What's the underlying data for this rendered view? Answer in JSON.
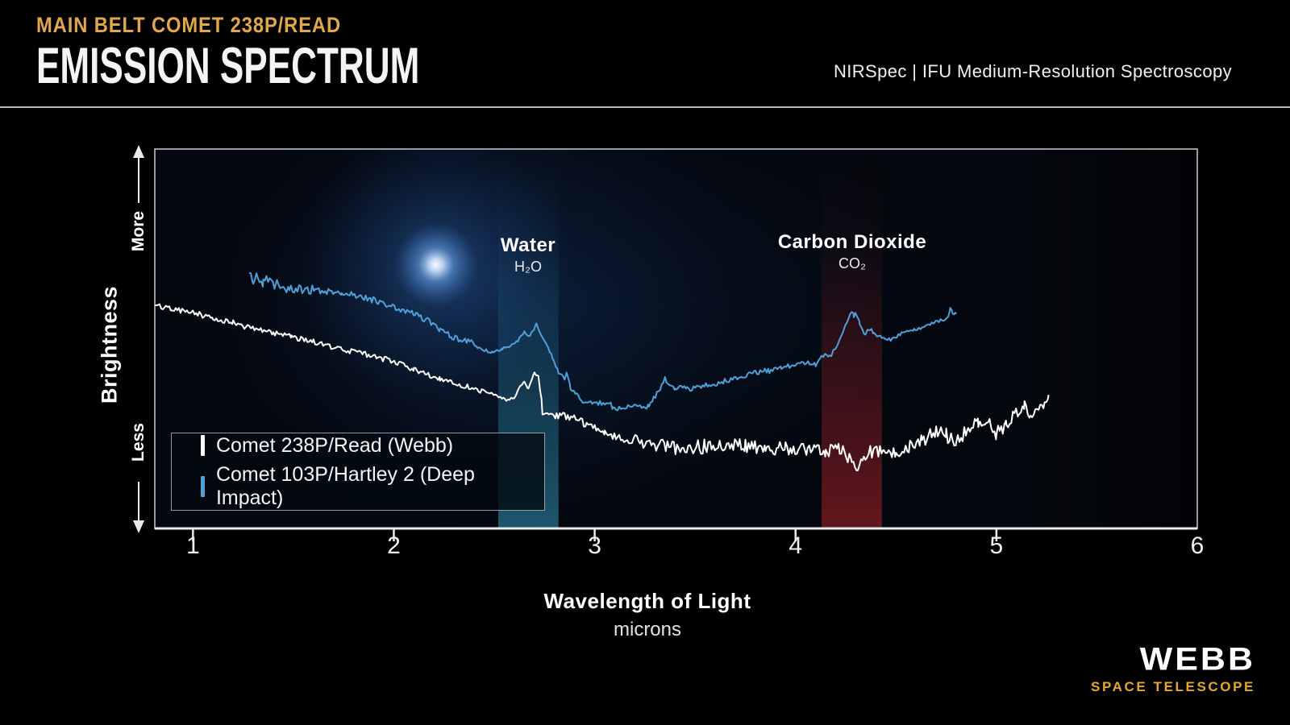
{
  "header": {
    "kicker": "MAIN BELT COMET 238P/READ",
    "title": "EMISSION SPECTRUM",
    "instrument": "NIRSpec | IFU Medium-Resolution Spectroscopy"
  },
  "logo": {
    "name": "WEBB",
    "subtitle": "SPACE TELESCOPE"
  },
  "colors": {
    "gold": "#e2a64b",
    "divider": "#b5bbc0",
    "axis": "#e8ecef",
    "frame": "#c9ced4",
    "white_series": "#ffffff",
    "blue_series": "#4f9fd9",
    "water_band": "#2d8cab",
    "co2_band": "#a02028",
    "background": "#000000"
  },
  "chart_data": {
    "type": "line",
    "title": "Emission Spectrum of Main Belt Comet 238P/Read",
    "xlabel": "Wavelength of Light",
    "x_units": "microns",
    "ylabel": "Brightness",
    "y_axis_annotations": {
      "top": "More",
      "bottom": "Less"
    },
    "x_ticks": [
      1,
      2,
      3,
      4,
      5,
      6
    ],
    "xlim": [
      0.81,
      6.0
    ],
    "ylim_relative": [
      0,
      100
    ],
    "grid": false,
    "legend_position": "lower-left",
    "bands": [
      {
        "label": "Water",
        "formula": "H₂O",
        "x_range": [
          2.52,
          2.82
        ],
        "color": "#2d8cab"
      },
      {
        "label": "Carbon Dioxide",
        "formula": "CO₂",
        "x_range": [
          4.13,
          4.43
        ],
        "color": "#a02028"
      }
    ],
    "annotations": [
      {
        "type": "comet-glow",
        "x": 2.21,
        "y": 69.5
      }
    ],
    "series": [
      {
        "name": "Comet 238P/Read (Webb)",
        "color": "#ffffff",
        "points": [
          [
            0.81,
            58.8
          ],
          [
            0.93,
            57.5
          ],
          [
            1.0,
            56.9
          ],
          [
            1.1,
            55.4
          ],
          [
            1.2,
            54.2
          ],
          [
            1.29,
            52.7
          ],
          [
            1.4,
            51.5
          ],
          [
            1.49,
            50.5
          ],
          [
            1.6,
            49.2
          ],
          [
            1.74,
            47.3
          ],
          [
            1.85,
            46.0
          ],
          [
            1.97,
            44.4
          ],
          [
            2.1,
            42.0
          ],
          [
            2.23,
            39.5
          ],
          [
            2.35,
            37.6
          ],
          [
            2.49,
            35.5
          ],
          [
            2.56,
            33.8
          ],
          [
            2.6,
            34.6
          ],
          [
            2.63,
            37.4
          ],
          [
            2.65,
            38.9
          ],
          [
            2.67,
            36.7
          ],
          [
            2.7,
            41.0
          ],
          [
            2.72,
            39.9
          ],
          [
            2.735,
            34.0
          ],
          [
            2.74,
            30.1
          ],
          [
            2.78,
            30.3
          ],
          [
            2.81,
            29.9
          ],
          [
            2.89,
            29.3
          ],
          [
            2.96,
            27.4
          ],
          [
            3.05,
            25.1
          ],
          [
            3.13,
            23.8
          ],
          [
            3.21,
            22.7
          ],
          [
            3.33,
            21.6
          ],
          [
            3.45,
            21.2
          ],
          [
            3.55,
            21.6
          ],
          [
            3.65,
            21.9
          ],
          [
            3.75,
            21.6
          ],
          [
            3.85,
            21.4
          ],
          [
            3.95,
            21.2
          ],
          [
            4.06,
            21.0
          ],
          [
            4.15,
            20.7
          ],
          [
            4.22,
            20.4
          ],
          [
            4.28,
            18.5
          ],
          [
            4.31,
            15.5
          ],
          [
            4.34,
            18.5
          ],
          [
            4.38,
            20.4
          ],
          [
            4.44,
            20.3
          ],
          [
            4.5,
            20.2
          ],
          [
            4.57,
            21.5
          ],
          [
            4.63,
            22.9
          ],
          [
            4.7,
            26.1
          ],
          [
            4.75,
            24.5
          ],
          [
            4.8,
            22.3
          ],
          [
            4.86,
            26.5
          ],
          [
            4.91,
            27.6
          ],
          [
            4.95,
            28.7
          ],
          [
            5.0,
            24.8
          ],
          [
            5.05,
            27.5
          ],
          [
            5.09,
            29.7
          ],
          [
            5.14,
            32.7
          ],
          [
            5.17,
            29.7
          ],
          [
            5.21,
            31.5
          ],
          [
            5.24,
            32.7
          ],
          [
            5.26,
            35.2
          ]
        ],
        "noise_segments": [
          [
            0.81,
            2.45,
            0.7
          ],
          [
            2.45,
            2.8,
            0.3
          ],
          [
            2.8,
            3.2,
            1.0
          ],
          [
            3.2,
            5.1,
            1.9
          ],
          [
            5.1,
            5.26,
            1.2
          ]
        ]
      },
      {
        "name": "Comet 103P/Hartley 2 (Deep Impact)",
        "color": "#4f9fd9",
        "points": [
          [
            1.28,
            67.5
          ],
          [
            1.3,
            66.0
          ],
          [
            1.35,
            65.2
          ],
          [
            1.41,
            64.5
          ],
          [
            1.48,
            63.6
          ],
          [
            1.57,
            62.8
          ],
          [
            1.65,
            62.5
          ],
          [
            1.74,
            62.2
          ],
          [
            1.82,
            61.3
          ],
          [
            1.89,
            60.3
          ],
          [
            1.97,
            59.0
          ],
          [
            2.05,
            57.5
          ],
          [
            2.11,
            56.2
          ],
          [
            2.17,
            54.8
          ],
          [
            2.23,
            52.6
          ],
          [
            2.29,
            50.3
          ],
          [
            2.37,
            49.5
          ],
          [
            2.42,
            47.6
          ],
          [
            2.49,
            46.3
          ],
          [
            2.54,
            47.3
          ],
          [
            2.61,
            49.0
          ],
          [
            2.65,
            51.6
          ],
          [
            2.67,
            50.5
          ],
          [
            2.69,
            52.0
          ],
          [
            2.71,
            53.7
          ],
          [
            2.76,
            48.6
          ],
          [
            2.79,
            45.2
          ],
          [
            2.82,
            41.0
          ],
          [
            2.85,
            39.5
          ],
          [
            2.86,
            41.2
          ],
          [
            2.88,
            36.9
          ],
          [
            2.91,
            35.5
          ],
          [
            2.94,
            33.3
          ],
          [
            3.01,
            33.1
          ],
          [
            3.08,
            33.3
          ],
          [
            3.09,
            31.6
          ],
          [
            3.15,
            32.0
          ],
          [
            3.21,
            32.5
          ],
          [
            3.27,
            32.1
          ],
          [
            3.31,
            35.5
          ],
          [
            3.35,
            39.3
          ],
          [
            3.4,
            36.3
          ],
          [
            3.43,
            37.8
          ],
          [
            3.46,
            36.7
          ],
          [
            3.53,
            37.5
          ],
          [
            3.6,
            38.2
          ],
          [
            3.67,
            39.2
          ],
          [
            3.73,
            40.1
          ],
          [
            3.8,
            40.9
          ],
          [
            3.87,
            41.6
          ],
          [
            3.93,
            42.4
          ],
          [
            4.0,
            43.1
          ],
          [
            4.03,
            44.0
          ],
          [
            4.07,
            43.5
          ],
          [
            4.1,
            43.3
          ],
          [
            4.13,
            45.4
          ],
          [
            4.18,
            45.9
          ],
          [
            4.21,
            48.6
          ],
          [
            4.24,
            52.4
          ],
          [
            4.28,
            57.5
          ],
          [
            4.29,
            56.1
          ],
          [
            4.3,
            56.9
          ],
          [
            4.32,
            53.9
          ],
          [
            4.34,
            51.8
          ],
          [
            4.35,
            51.4
          ],
          [
            4.37,
            52.7
          ],
          [
            4.39,
            51.6
          ],
          [
            4.43,
            50.3
          ],
          [
            4.45,
            49.9
          ],
          [
            4.48,
            49.7
          ],
          [
            4.53,
            51.4
          ],
          [
            4.59,
            52.2
          ],
          [
            4.63,
            52.9
          ],
          [
            4.69,
            54.4
          ],
          [
            4.73,
            55.0
          ],
          [
            4.76,
            55.6
          ],
          [
            4.77,
            58.2
          ],
          [
            4.78,
            57.1
          ],
          [
            4.8,
            56.5
          ]
        ],
        "noise_segments": [
          [
            1.28,
            1.6,
            1.6
          ],
          [
            1.6,
            2.4,
            0.8
          ],
          [
            2.4,
            3.0,
            0.4
          ],
          [
            3.0,
            4.1,
            0.7
          ],
          [
            4.1,
            4.8,
            0.5
          ]
        ]
      }
    ]
  }
}
